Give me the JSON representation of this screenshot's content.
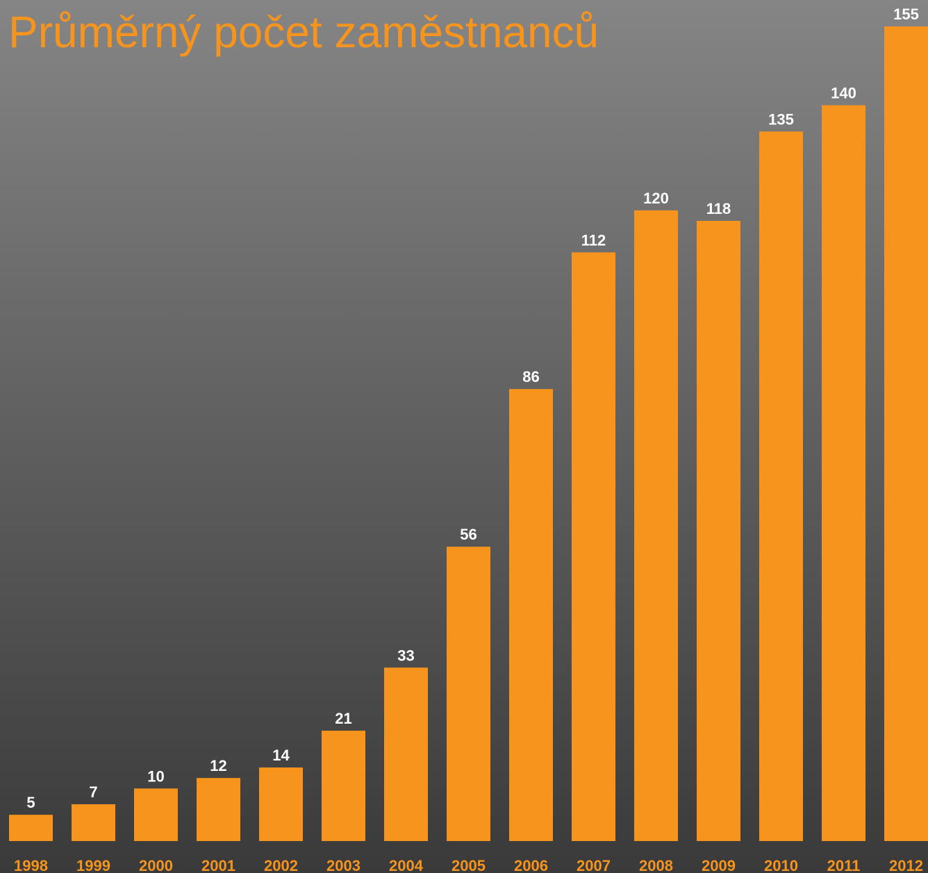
{
  "chart_data": {
    "type": "bar",
    "title": "Průměrný počet zaměstnanců",
    "categories": [
      "1998",
      "1999",
      "2000",
      "2001",
      "2002",
      "2003",
      "2004",
      "2005",
      "2006",
      "2007",
      "2008",
      "2009",
      "2010",
      "2011",
      "2012"
    ],
    "values": [
      5,
      7,
      10,
      12,
      14,
      21,
      33,
      56,
      86,
      112,
      120,
      118,
      135,
      140,
      155
    ],
    "color": "#f7941d"
  }
}
